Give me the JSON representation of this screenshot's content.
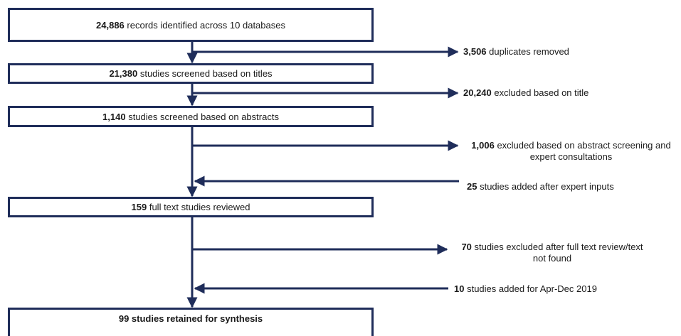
{
  "boxes": [
    {
      "num": "24,886",
      "text": "records identified across 10 databases"
    },
    {
      "num": "21,380",
      "text": "studies screened based on titles"
    },
    {
      "num": "1,140",
      "text": "studies screened based on abstracts"
    },
    {
      "num": "159",
      "text": "full text studies reviewed"
    },
    {
      "text": "99 studies retained for synthesis"
    }
  ],
  "side_labels": [
    {
      "num": "3,506",
      "text": "duplicates removed"
    },
    {
      "num": "20,240",
      "text": "excluded based on title"
    },
    {
      "num": "1,006",
      "text": "excluded based on abstract screening and",
      "line2": "expert consultations"
    },
    {
      "num": "25",
      "text": "studies added after expert inputs"
    },
    {
      "num": "70",
      "text": "studies excluded after full text review/text",
      "line2": "not found"
    },
    {
      "num": "10",
      "text": "studies added for Apr-Dec 2019"
    }
  ],
  "colors": {
    "flow": "#1f2d5a"
  }
}
